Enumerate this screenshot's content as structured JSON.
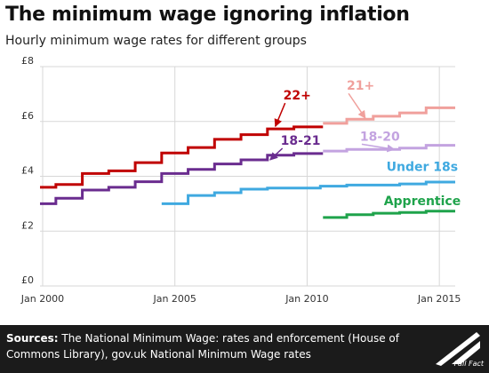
{
  "header": {
    "title": "The minimum wage ignoring inflation",
    "subtitle": "Hourly minimum wage rates for different groups"
  },
  "footer": {
    "sources_label": "Sources:",
    "sources_text": "The National Minimum Wage: rates and enforcement (House of Commons Library), gov.uk National Minimum Wage rates",
    "logo_text": "Full Fact"
  },
  "chart_data": {
    "type": "line",
    "step": true,
    "xlim": [
      1999.9,
      2015.6
    ],
    "ylim": [
      0,
      8
    ],
    "x_ticks": [
      {
        "value": 2000,
        "label": "Jan 2000"
      },
      {
        "value": 2005,
        "label": "Jan 2005"
      },
      {
        "value": 2010,
        "label": "Jan 2010"
      },
      {
        "value": 2015,
        "label": "Jan 2015"
      }
    ],
    "y_ticks": [
      {
        "value": 0,
        "label": "£0"
      },
      {
        "value": 2,
        "label": "£2"
      },
      {
        "value": 4,
        "label": "£4"
      },
      {
        "value": 6,
        "label": "£6"
      },
      {
        "value": 8,
        "label": "£8"
      }
    ],
    "grid": true,
    "series": [
      {
        "name": "22+",
        "color": "#c00000",
        "label_at": [
          2009.1,
          6.8
        ],
        "arrow_to": [
          2008.8,
          5.82
        ],
        "points": [
          [
            1999.9,
            3.6
          ],
          [
            2000.5,
            3.7
          ],
          [
            2001.5,
            4.1
          ],
          [
            2002.5,
            4.2
          ],
          [
            2003.5,
            4.5
          ],
          [
            2004.5,
            4.85
          ],
          [
            2005.5,
            5.05
          ],
          [
            2006.5,
            5.35
          ],
          [
            2007.5,
            5.52
          ],
          [
            2008.5,
            5.73
          ],
          [
            2009.5,
            5.8
          ],
          [
            2010.6,
            5.8
          ]
        ]
      },
      {
        "name": "18-21",
        "color": "#6a2c8f",
        "label_at": [
          2009.0,
          5.15
        ],
        "arrow_to": [
          2008.6,
          4.6
        ],
        "points": [
          [
            1999.9,
            3.0
          ],
          [
            2000.5,
            3.2
          ],
          [
            2001.5,
            3.5
          ],
          [
            2002.5,
            3.6
          ],
          [
            2003.5,
            3.8
          ],
          [
            2004.5,
            4.1
          ],
          [
            2005.5,
            4.25
          ],
          [
            2006.5,
            4.45
          ],
          [
            2007.5,
            4.6
          ],
          [
            2008.5,
            4.77
          ],
          [
            2009.5,
            4.83
          ],
          [
            2010.6,
            4.83
          ]
        ]
      },
      {
        "name": "21+",
        "color": "#f0a09c",
        "label_at": [
          2011.5,
          7.15
        ],
        "arrow_to": [
          2012.2,
          6.12
        ],
        "points": [
          [
            2010.6,
            5.93
          ],
          [
            2011.5,
            6.08
          ],
          [
            2012.5,
            6.19
          ],
          [
            2013.5,
            6.31
          ],
          [
            2014.5,
            6.5
          ],
          [
            2015.6,
            6.5
          ]
        ]
      },
      {
        "name": "18-20",
        "color": "#c3a3e0",
        "label_at": [
          2012.0,
          5.3
        ],
        "arrow_to": [
          2013.3,
          4.98
        ],
        "points": [
          [
            2010.6,
            4.92
          ],
          [
            2011.5,
            4.98
          ],
          [
            2012.5,
            4.98
          ],
          [
            2013.5,
            5.03
          ],
          [
            2014.5,
            5.13
          ],
          [
            2015.6,
            5.13
          ]
        ]
      },
      {
        "name": "Under 18s",
        "color": "#3fa9e0",
        "label_at": [
          2013.0,
          4.2
        ],
        "points": [
          [
            2004.5,
            3.0
          ],
          [
            2005.5,
            3.3
          ],
          [
            2006.5,
            3.4
          ],
          [
            2007.5,
            3.53
          ],
          [
            2008.5,
            3.57
          ],
          [
            2009.5,
            3.57
          ],
          [
            2010.5,
            3.64
          ],
          [
            2011.5,
            3.68
          ],
          [
            2012.5,
            3.68
          ],
          [
            2013.5,
            3.72
          ],
          [
            2014.5,
            3.79
          ],
          [
            2015.6,
            3.79
          ]
        ]
      },
      {
        "name": "Apprentice",
        "color": "#1fa34b",
        "label_at": [
          2012.9,
          2.95
        ],
        "points": [
          [
            2010.6,
            2.5
          ],
          [
            2011.5,
            2.6
          ],
          [
            2012.5,
            2.65
          ],
          [
            2013.5,
            2.68
          ],
          [
            2014.5,
            2.73
          ],
          [
            2015.6,
            2.73
          ]
        ]
      }
    ]
  }
}
